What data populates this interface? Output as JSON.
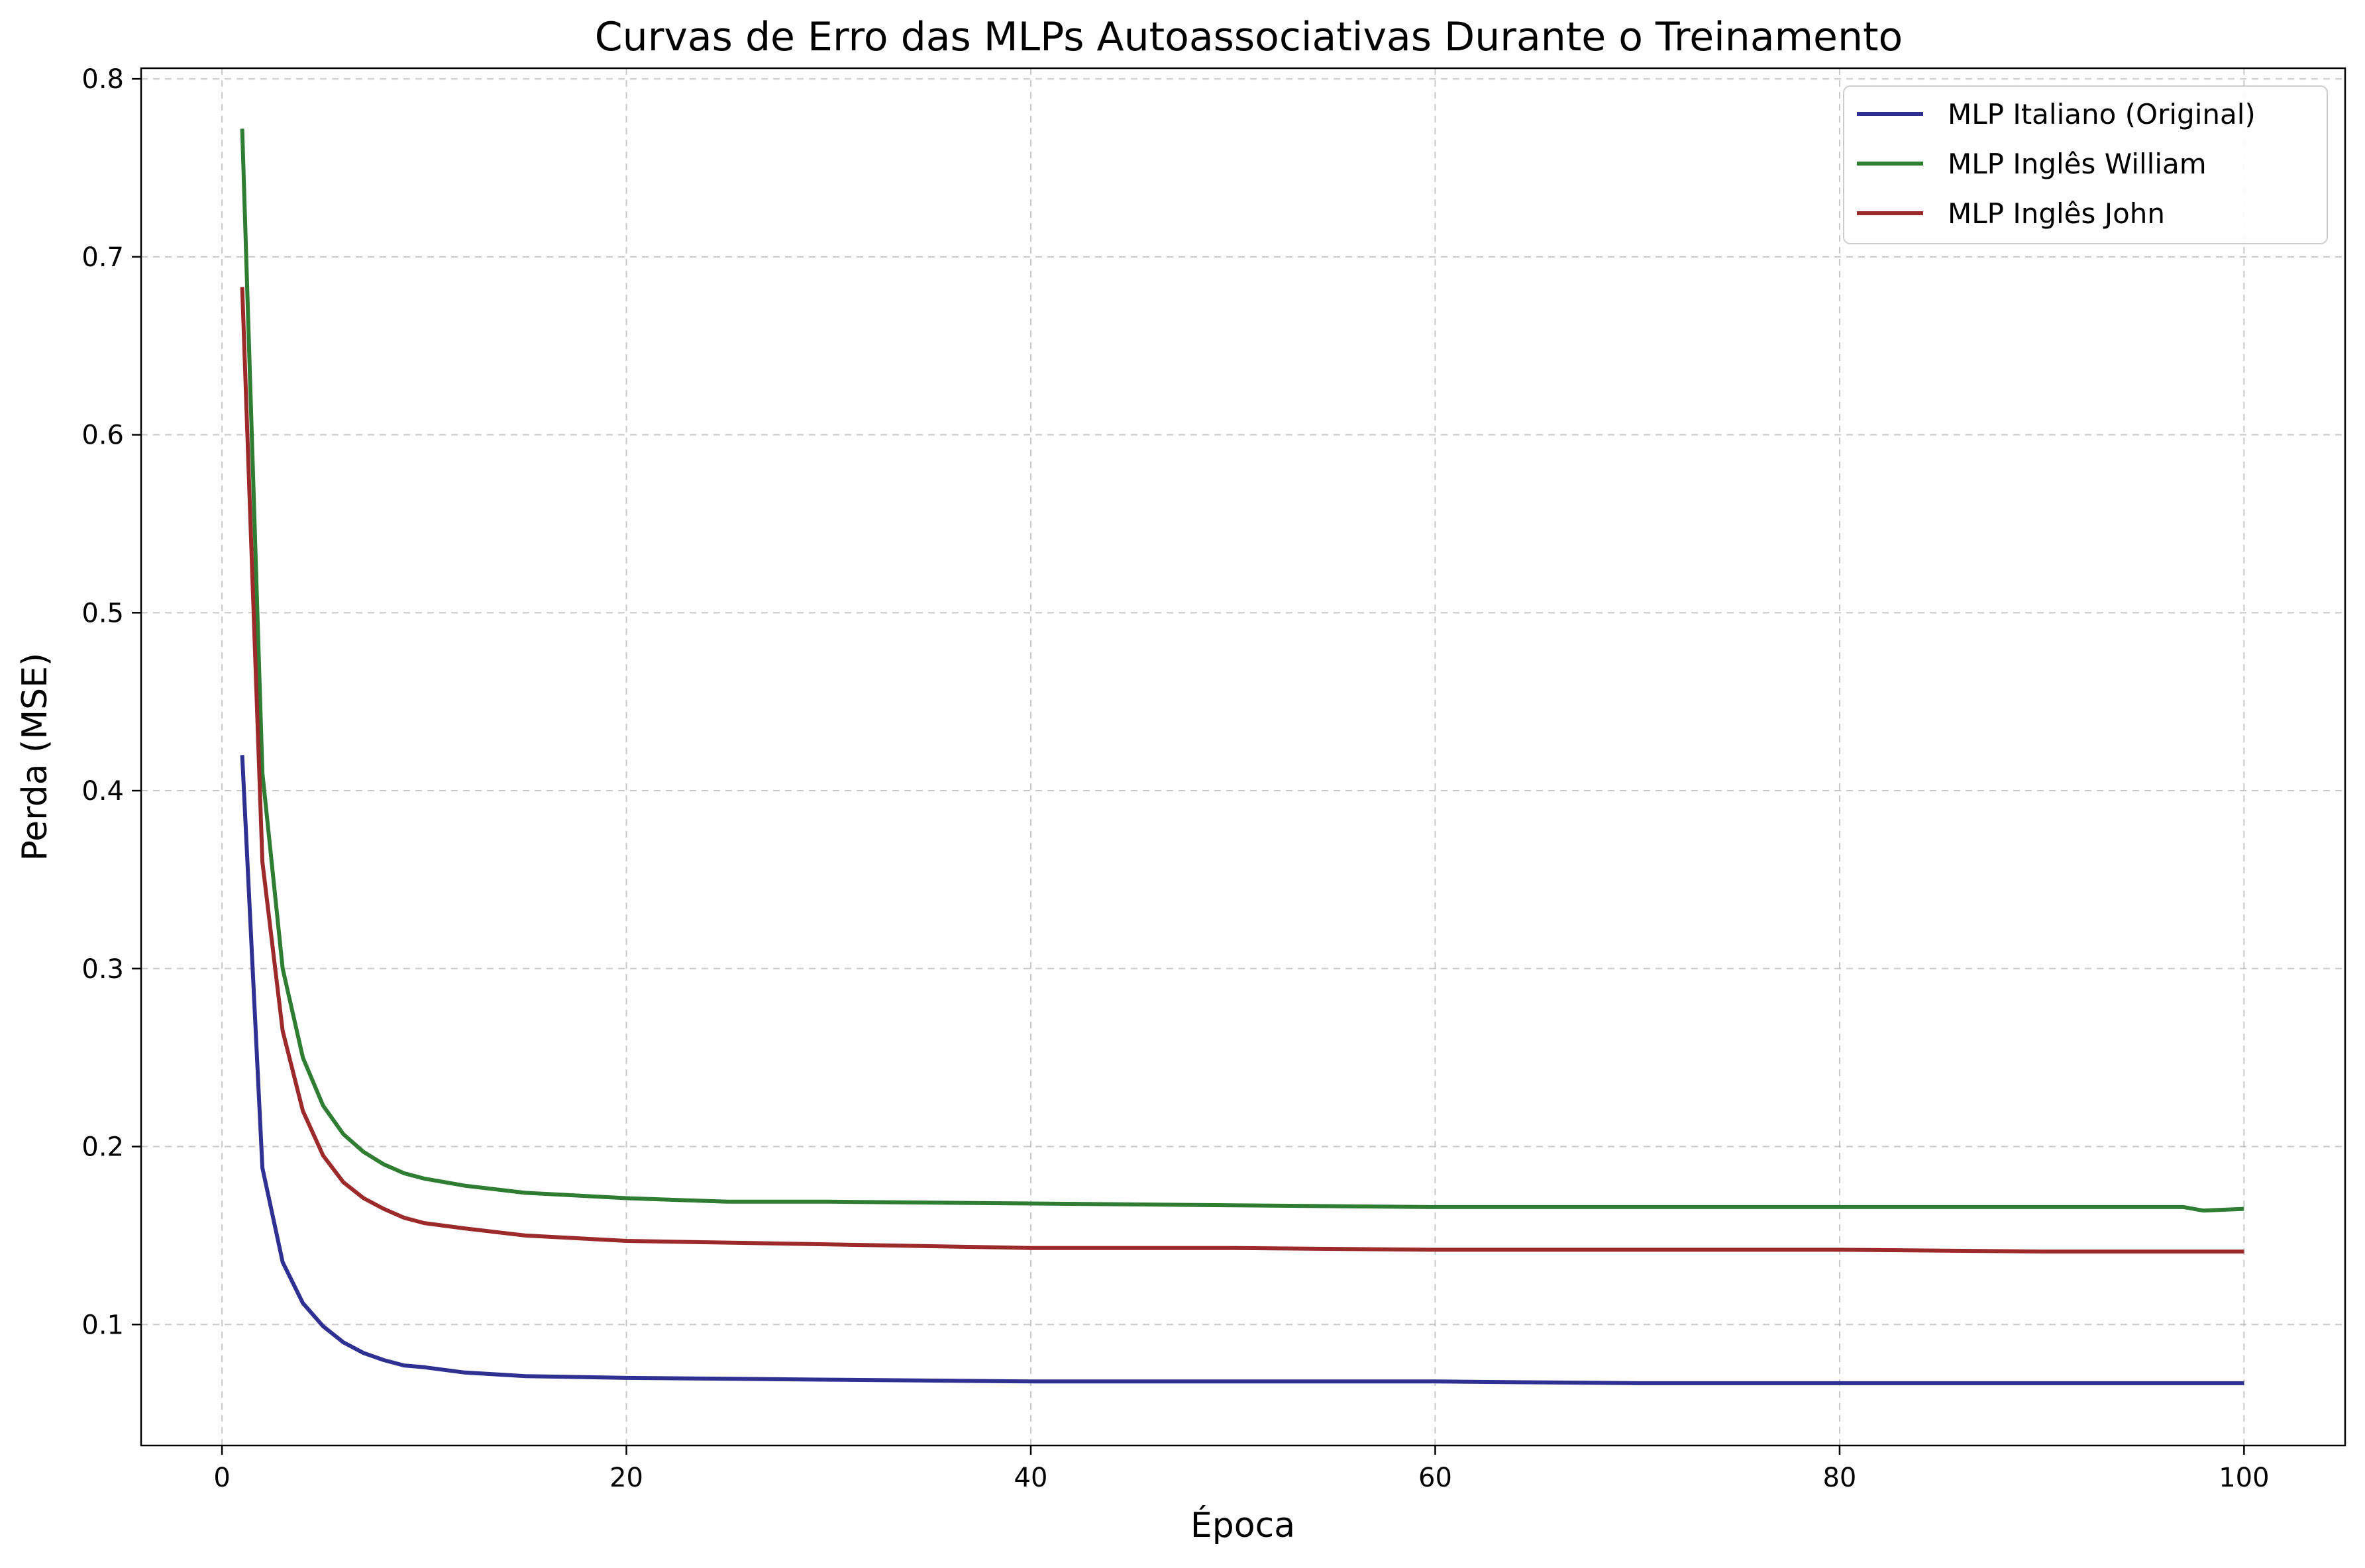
{
  "chart_data": {
    "type": "line",
    "title": "Curvas de Erro das MLPs Autoassociativas Durante o Treinamento",
    "xlabel": "Época",
    "ylabel": "Perda (MSE)",
    "xlim": [
      -4,
      105
    ],
    "ylim": [
      0.032,
      0.806
    ],
    "xticks": [
      0,
      20,
      40,
      60,
      80,
      100
    ],
    "yticks": [
      0.1,
      0.2,
      0.3,
      0.4,
      0.5,
      0.6,
      0.7,
      0.8
    ],
    "grid": true,
    "legend_position": "top-right",
    "series": [
      {
        "name": "MLP Italiano (Original)",
        "color": "#2e3192",
        "keypoints": [
          [
            1,
            0.42
          ],
          [
            2,
            0.188
          ],
          [
            3,
            0.135
          ],
          [
            4,
            0.112
          ],
          [
            5,
            0.099
          ],
          [
            6,
            0.09
          ],
          [
            7,
            0.084
          ],
          [
            8,
            0.08
          ],
          [
            9,
            0.077
          ],
          [
            10,
            0.076
          ],
          [
            12,
            0.073
          ],
          [
            15,
            0.071
          ],
          [
            20,
            0.07
          ],
          [
            30,
            0.069
          ],
          [
            40,
            0.068
          ],
          [
            50,
            0.068
          ],
          [
            60,
            0.068
          ],
          [
            70,
            0.067
          ],
          [
            80,
            0.067
          ],
          [
            90,
            0.067
          ],
          [
            100,
            0.067
          ]
        ]
      },
      {
        "name": "MLP Inglês William",
        "color": "#2e7d32",
        "keypoints": [
          [
            1,
            0.772
          ],
          [
            2,
            0.41
          ],
          [
            3,
            0.3
          ],
          [
            4,
            0.25
          ],
          [
            5,
            0.223
          ],
          [
            6,
            0.207
          ],
          [
            7,
            0.197
          ],
          [
            8,
            0.19
          ],
          [
            9,
            0.185
          ],
          [
            10,
            0.182
          ],
          [
            12,
            0.178
          ],
          [
            15,
            0.174
          ],
          [
            20,
            0.171
          ],
          [
            25,
            0.169
          ],
          [
            30,
            0.169
          ],
          [
            40,
            0.168
          ],
          [
            50,
            0.167
          ],
          [
            60,
            0.166
          ],
          [
            70,
            0.166
          ],
          [
            80,
            0.166
          ],
          [
            90,
            0.166
          ],
          [
            95,
            0.166
          ],
          [
            97,
            0.166
          ],
          [
            98,
            0.164
          ],
          [
            100,
            0.165
          ]
        ]
      },
      {
        "name": "MLP Inglês John",
        "color": "#9c2a2a",
        "keypoints": [
          [
            1,
            0.683
          ],
          [
            2,
            0.36
          ],
          [
            3,
            0.265
          ],
          [
            4,
            0.22
          ],
          [
            5,
            0.195
          ],
          [
            6,
            0.18
          ],
          [
            7,
            0.171
          ],
          [
            8,
            0.165
          ],
          [
            9,
            0.16
          ],
          [
            10,
            0.157
          ],
          [
            12,
            0.154
          ],
          [
            15,
            0.15
          ],
          [
            20,
            0.147
          ],
          [
            25,
            0.146
          ],
          [
            30,
            0.145
          ],
          [
            40,
            0.143
          ],
          [
            50,
            0.143
          ],
          [
            60,
            0.142
          ],
          [
            70,
            0.142
          ],
          [
            80,
            0.142
          ],
          [
            90,
            0.141
          ],
          [
            100,
            0.141
          ]
        ]
      }
    ]
  }
}
